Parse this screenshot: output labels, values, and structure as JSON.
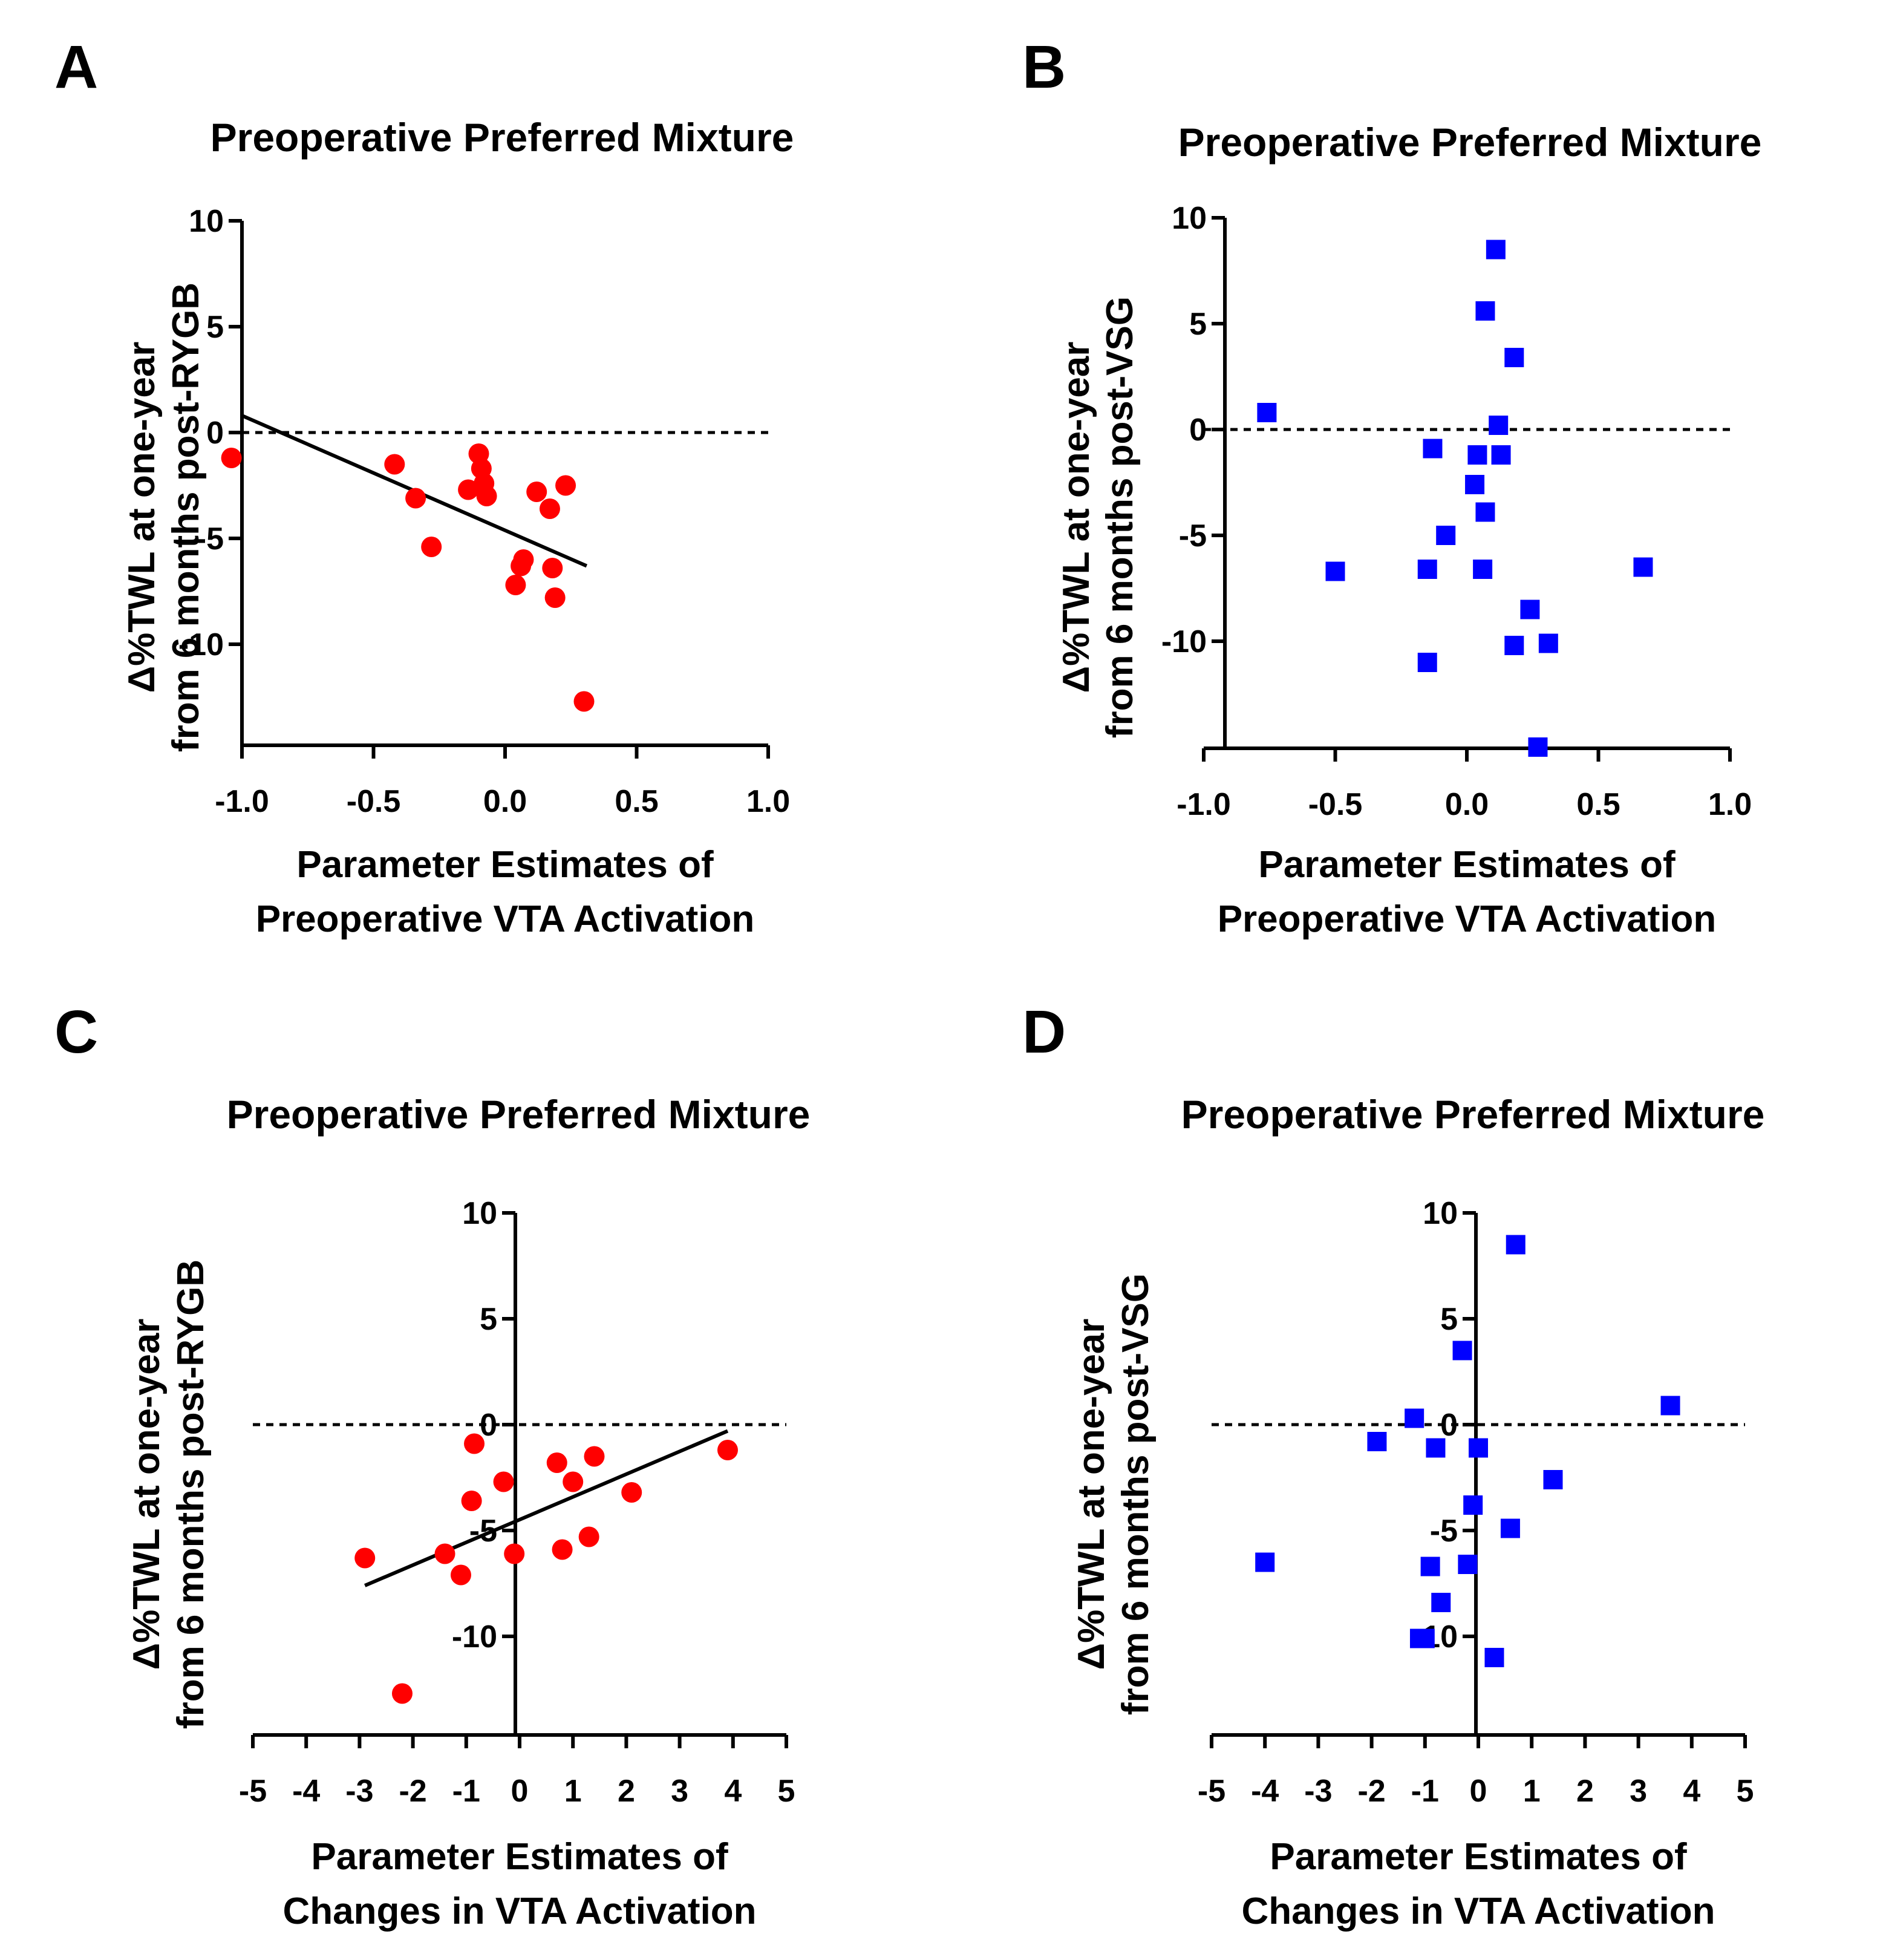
{
  "chart_data": [
    {
      "panel": "A",
      "type": "scatter",
      "title": "Preoperative Preferred Mixture",
      "xlabel": [
        "Parameter Estimates of",
        "Preoperative VTA Activation"
      ],
      "ylabel": [
        "Δ%TWL at one-year",
        "from 6 months post-RYGB"
      ],
      "xlim": [
        -1.1,
        1.0
      ],
      "ylim": [
        -14.5,
        10
      ],
      "xticks": [
        -1.0,
        -0.5,
        0.0,
        0.5,
        1.0
      ],
      "xtick_labels": [
        "-1.0",
        "-0.5",
        "0.0",
        "0.5",
        "1.0"
      ],
      "yticks": [
        10,
        5,
        0,
        -5,
        -10
      ],
      "ytick_labels": [
        "10",
        "5",
        "0",
        "-5",
        "-10"
      ],
      "reference_line_y": 0,
      "marker": "circle",
      "color": "#ff0000",
      "points": [
        {
          "x": -1.04,
          "y": -1.2
        },
        {
          "x": -0.42,
          "y": -1.5
        },
        {
          "x": -0.34,
          "y": -3.1
        },
        {
          "x": -0.28,
          "y": -5.4
        },
        {
          "x": -0.14,
          "y": -2.7
        },
        {
          "x": -0.1,
          "y": -1.0
        },
        {
          "x": -0.09,
          "y": -1.7
        },
        {
          "x": -0.08,
          "y": -2.4
        },
        {
          "x": -0.07,
          "y": -3.0
        },
        {
          "x": 0.04,
          "y": -7.2
        },
        {
          "x": 0.06,
          "y": -6.3
        },
        {
          "x": 0.07,
          "y": -6.0
        },
        {
          "x": 0.12,
          "y": -2.8
        },
        {
          "x": 0.17,
          "y": -3.6
        },
        {
          "x": 0.18,
          "y": -6.4
        },
        {
          "x": 0.19,
          "y": -7.8
        },
        {
          "x": 0.23,
          "y": -2.5
        },
        {
          "x": 0.3,
          "y": -12.7
        }
      ],
      "regression_line": {
        "x": [
          -1.0,
          0.31
        ],
        "y": [
          0.8,
          -6.3
        ]
      }
    },
    {
      "panel": "B",
      "type": "scatter",
      "title": "Preoperative Preferred Mixture",
      "xlabel": [
        "Parameter Estimates of",
        "Preoperative VTA Activation"
      ],
      "ylabel": [
        "Δ%TWL at one-year",
        "from 6 months post-VSG"
      ],
      "xlim": [
        -1.1,
        1.0
      ],
      "ylim": [
        -15,
        10
      ],
      "xticks": [
        -1.0,
        -0.5,
        0.0,
        0.5,
        1.0
      ],
      "xtick_labels": [
        "-1.0",
        "-0.5",
        "0.0",
        "0.5",
        "1.0"
      ],
      "yticks": [
        10,
        5,
        0,
        -5,
        -10
      ],
      "ytick_labels": [
        "10",
        "5",
        "0",
        "-5",
        "-10"
      ],
      "reference_line_y": 0,
      "marker": "square",
      "color": "#0000ff",
      "points": [
        {
          "x": -0.76,
          "y": 0.8
        },
        {
          "x": -0.5,
          "y": -6.7
        },
        {
          "x": -0.15,
          "y": -11.0
        },
        {
          "x": -0.15,
          "y": -6.6
        },
        {
          "x": -0.13,
          "y": -0.9
        },
        {
          "x": -0.08,
          "y": -5.0
        },
        {
          "x": 0.03,
          "y": -2.6
        },
        {
          "x": 0.04,
          "y": -1.2
        },
        {
          "x": 0.06,
          "y": -6.6
        },
        {
          "x": 0.07,
          "y": -3.9
        },
        {
          "x": 0.07,
          "y": 5.6
        },
        {
          "x": 0.11,
          "y": 8.5
        },
        {
          "x": 0.12,
          "y": 0.2
        },
        {
          "x": 0.13,
          "y": -1.2
        },
        {
          "x": 0.18,
          "y": 3.4
        },
        {
          "x": 0.18,
          "y": -10.2
        },
        {
          "x": 0.24,
          "y": -8.5
        },
        {
          "x": 0.27,
          "y": -15.0
        },
        {
          "x": 0.31,
          "y": -10.1
        },
        {
          "x": 0.67,
          "y": -6.5
        }
      ]
    },
    {
      "panel": "C",
      "type": "scatter",
      "title": "Preoperative Preferred Mixture",
      "xlabel": [
        "Parameter Estimates of",
        "Changes in VTA Activation"
      ],
      "ylabel": [
        "Δ%TWL at one-year",
        "from 6 months post-RYGB"
      ],
      "xlim": [
        -5,
        5
      ],
      "ylim": [
        -14.5,
        10
      ],
      "xticks": [
        -5,
        -4,
        -3,
        -2,
        -1,
        0,
        1,
        2,
        3,
        4,
        5
      ],
      "xtick_labels": [
        "-5",
        "-4",
        "-3",
        "-2",
        "-1",
        "0",
        "1",
        "2",
        "3",
        "4",
        "5"
      ],
      "yticks": [
        10,
        5,
        0,
        -5,
        -10
      ],
      "ytick_labels": [
        "10",
        "5",
        "0",
        "-5",
        "-10"
      ],
      "reference_line_y": 0,
      "marker": "circle",
      "color": "#ff0000",
      "points": [
        {
          "x": -2.9,
          "y": -6.3
        },
        {
          "x": -2.2,
          "y": -12.7
        },
        {
          "x": -1.4,
          "y": -6.1
        },
        {
          "x": -1.1,
          "y": -7.1
        },
        {
          "x": -0.9,
          "y": -3.6
        },
        {
          "x": -0.85,
          "y": -0.9
        },
        {
          "x": -0.3,
          "y": -2.7
        },
        {
          "x": -0.1,
          "y": -6.1
        },
        {
          "x": 0.7,
          "y": -1.8
        },
        {
          "x": 0.8,
          "y": -5.9
        },
        {
          "x": 1.0,
          "y": -2.7
        },
        {
          "x": 1.3,
          "y": -5.3
        },
        {
          "x": 1.4,
          "y": -1.5
        },
        {
          "x": 2.1,
          "y": -3.2
        },
        {
          "x": 3.9,
          "y": -1.2
        }
      ],
      "regression_line": {
        "x": [
          -2.9,
          3.9
        ],
        "y": [
          -7.6,
          -0.3
        ]
      }
    },
    {
      "panel": "D",
      "type": "scatter",
      "title": "Preoperative Preferred Mixture",
      "xlabel": [
        "Parameter Estimates of",
        "Changes in VTA Activation"
      ],
      "ylabel": [
        "Δ%TWL at one-year",
        "from 6 months post-VSG"
      ],
      "xlim": [
        -5,
        5
      ],
      "ylim": [
        -15,
        10
      ],
      "xticks": [
        -5,
        -4,
        -3,
        -2,
        -1,
        0,
        1,
        2,
        3,
        4,
        5
      ],
      "xtick_labels": [
        "-5",
        "-4",
        "-3",
        "-2",
        "-1",
        "0",
        "1",
        "2",
        "3",
        "4",
        "5"
      ],
      "yticks": [
        10,
        5,
        0,
        -5,
        -10
      ],
      "ytick_labels": [
        "10",
        "5",
        "0",
        "-5",
        "-10"
      ],
      "reference_line_y": 0,
      "marker": "square",
      "color": "#0000ff",
      "points": [
        {
          "x": -4.0,
          "y": -6.5
        },
        {
          "x": -1.9,
          "y": -0.8
        },
        {
          "x": -1.2,
          "y": 0.3
        },
        {
          "x": -1.1,
          "y": -10.1
        },
        {
          "x": -1.0,
          "y": -10.1
        },
        {
          "x": -0.9,
          "y": -6.7
        },
        {
          "x": -0.8,
          "y": -1.1
        },
        {
          "x": -0.7,
          "y": -8.4
        },
        {
          "x": -0.3,
          "y": 3.5
        },
        {
          "x": -0.2,
          "y": -6.6
        },
        {
          "x": -0.1,
          "y": -3.8
        },
        {
          "x": 0.0,
          "y": -1.1
        },
        {
          "x": 0.3,
          "y": -11.0
        },
        {
          "x": 0.6,
          "y": -4.9
        },
        {
          "x": 0.7,
          "y": 8.5
        },
        {
          "x": 1.4,
          "y": -2.6
        },
        {
          "x": 3.6,
          "y": 0.9
        }
      ]
    }
  ]
}
